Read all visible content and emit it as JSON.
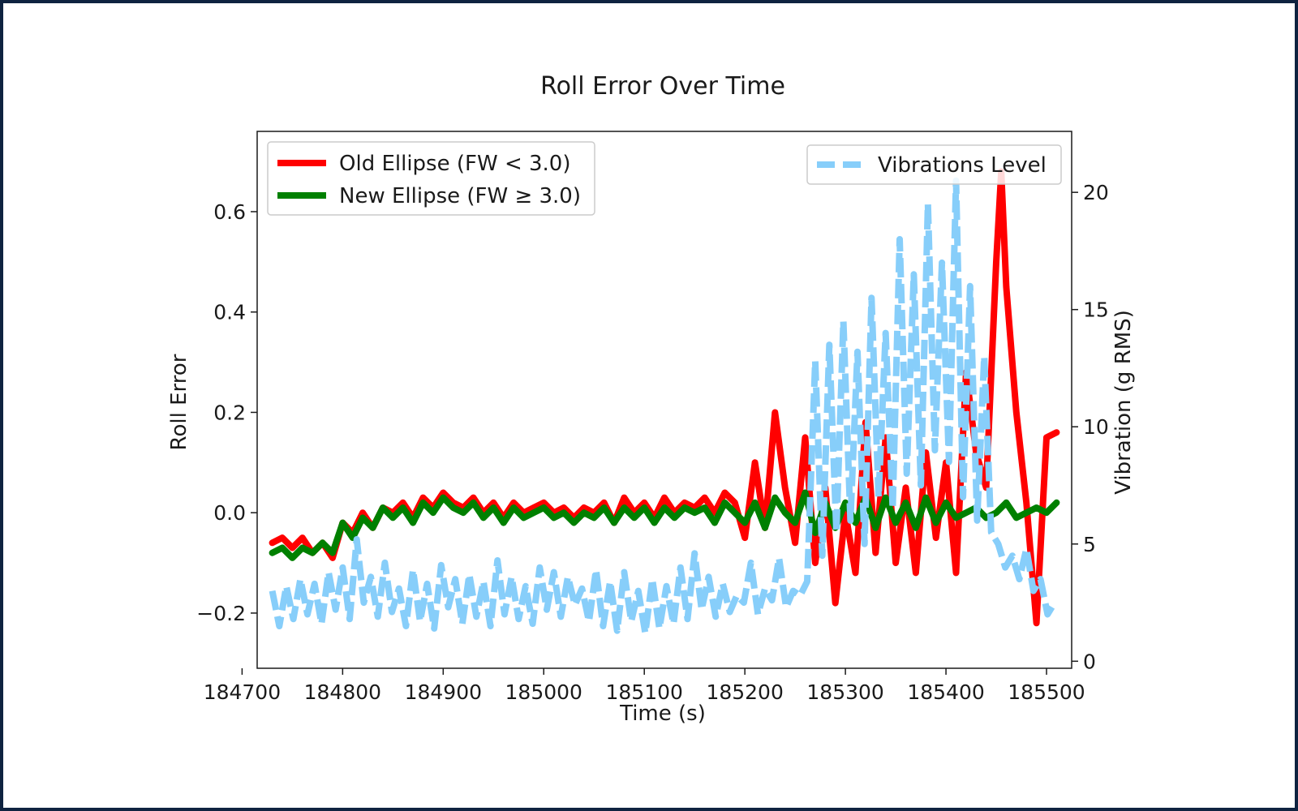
{
  "chart_data": {
    "type": "line",
    "title": "Roll Error Over Time",
    "xlabel": "Time (s)",
    "ylabel": "Roll Error",
    "y2label": "Vibration (g RMS)",
    "xlim": [
      184715,
      185525
    ],
    "ylim": [
      -0.31,
      0.76
    ],
    "y2lim": [
      -0.3,
      22.6
    ],
    "xticks": [
      184700,
      184800,
      184900,
      185000,
      185100,
      185200,
      185300,
      185400,
      185500
    ],
    "xtick_labels": [
      "184700",
      "184800",
      "184900",
      "185000",
      "185100",
      "185200",
      "185300",
      "185400",
      "185500"
    ],
    "yticks": [
      -0.2,
      0.0,
      0.2,
      0.4,
      0.6
    ],
    "ytick_labels": [
      "−0.2",
      "0.0",
      "0.2",
      "0.4",
      "0.6"
    ],
    "y2ticks": [
      0,
      5,
      10,
      15,
      20
    ],
    "y2tick_labels": [
      "0",
      "5",
      "10",
      "15",
      "20"
    ],
    "grid": false,
    "legend_left": "top-left",
    "legend_right": "top-right",
    "series": [
      {
        "name": "Old Ellipse (FW < 3.0)",
        "axis": "left",
        "color": "#ff0000",
        "style": "solid",
        "x": [
          184730,
          184740,
          184750,
          184760,
          184770,
          184780,
          184790,
          184800,
          184810,
          184820,
          184830,
          184840,
          184850,
          184860,
          184870,
          184880,
          184890,
          184900,
          184910,
          184920,
          184930,
          184940,
          184950,
          184960,
          184970,
          184980,
          184990,
          185000,
          185010,
          185020,
          185030,
          185040,
          185050,
          185060,
          185070,
          185080,
          185090,
          185100,
          185110,
          185120,
          185130,
          185140,
          185150,
          185160,
          185170,
          185180,
          185190,
          185200,
          185210,
          185220,
          185230,
          185240,
          185250,
          185260,
          185270,
          185280,
          185290,
          185300,
          185310,
          185320,
          185330,
          185340,
          185350,
          185360,
          185370,
          185380,
          185390,
          185400,
          185410,
          185420,
          185430,
          185440,
          185450,
          185455,
          185460,
          185470,
          185480,
          185490,
          185500,
          185510
        ],
        "y": [
          -0.06,
          -0.05,
          -0.07,
          -0.05,
          -0.08,
          -0.06,
          -0.09,
          -0.02,
          -0.04,
          0.0,
          -0.03,
          0.01,
          0.0,
          0.02,
          -0.01,
          0.03,
          0.01,
          0.04,
          0.02,
          0.01,
          0.03,
          0.0,
          0.02,
          -0.01,
          0.02,
          0.0,
          0.01,
          0.02,
          0.0,
          0.01,
          -0.01,
          0.01,
          0.0,
          0.02,
          -0.02,
          0.03,
          0.0,
          0.02,
          -0.01,
          0.03,
          0.0,
          0.02,
          0.01,
          0.03,
          0.0,
          0.04,
          0.02,
          -0.05,
          0.1,
          -0.03,
          0.2,
          0.05,
          -0.06,
          0.15,
          -0.1,
          0.05,
          -0.18,
          0.0,
          -0.12,
          0.18,
          -0.08,
          0.15,
          -0.1,
          0.05,
          -0.12,
          0.12,
          -0.05,
          0.1,
          -0.12,
          0.28,
          0.12,
          0.05,
          0.5,
          0.68,
          0.45,
          0.2,
          0.02,
          -0.22,
          0.15,
          0.16
        ]
      },
      {
        "name": "New Ellipse (FW ≥ 3.0)",
        "axis": "left",
        "color": "#008000",
        "style": "solid",
        "x": [
          184730,
          184740,
          184750,
          184760,
          184770,
          184780,
          184790,
          184800,
          184810,
          184820,
          184830,
          184840,
          184850,
          184860,
          184870,
          184880,
          184890,
          184900,
          184910,
          184920,
          184930,
          184940,
          184950,
          184960,
          184970,
          184980,
          184990,
          185000,
          185010,
          185020,
          185030,
          185040,
          185050,
          185060,
          185070,
          185080,
          185090,
          185100,
          185110,
          185120,
          185130,
          185140,
          185150,
          185160,
          185170,
          185180,
          185190,
          185200,
          185210,
          185220,
          185230,
          185240,
          185250,
          185260,
          185270,
          185280,
          185290,
          185300,
          185310,
          185320,
          185330,
          185340,
          185350,
          185360,
          185370,
          185380,
          185390,
          185400,
          185410,
          185420,
          185430,
          185440,
          185450,
          185460,
          185470,
          185480,
          185490,
          185500,
          185510
        ],
        "y": [
          -0.08,
          -0.07,
          -0.09,
          -0.07,
          -0.08,
          -0.06,
          -0.08,
          -0.02,
          -0.05,
          -0.01,
          -0.03,
          0.01,
          -0.01,
          0.01,
          -0.02,
          0.02,
          0.0,
          0.03,
          0.01,
          0.0,
          0.02,
          -0.01,
          0.01,
          -0.02,
          0.01,
          -0.01,
          0.0,
          0.01,
          -0.01,
          0.0,
          -0.02,
          0.0,
          -0.01,
          0.01,
          -0.02,
          0.01,
          -0.01,
          0.01,
          -0.02,
          0.01,
          -0.01,
          0.01,
          0.0,
          0.01,
          -0.02,
          0.02,
          0.0,
          -0.02,
          0.02,
          -0.03,
          0.03,
          0.0,
          -0.02,
          0.04,
          -0.04,
          0.02,
          -0.03,
          0.02,
          -0.02,
          0.03,
          -0.03,
          0.03,
          -0.02,
          0.02,
          -0.03,
          0.03,
          -0.02,
          0.02,
          -0.01,
          0.0,
          0.01,
          -0.01,
          0.0,
          0.02,
          -0.01,
          0.0,
          0.01,
          0.0,
          0.02
        ]
      },
      {
        "name": "Vibrations Level",
        "axis": "right",
        "color": "#87cefa",
        "style": "dashed",
        "x": [
          184730,
          184737,
          184744,
          184751,
          184758,
          184765,
          184772,
          184779,
          184786,
          184793,
          184800,
          184807,
          184814,
          184821,
          184828,
          184835,
          184842,
          184849,
          184856,
          184863,
          184870,
          184877,
          184884,
          184891,
          184898,
          184905,
          184912,
          184919,
          184926,
          184933,
          184940,
          184947,
          184954,
          184961,
          184968,
          184975,
          184982,
          184989,
          184996,
          185003,
          185010,
          185017,
          185024,
          185031,
          185038,
          185045,
          185052,
          185059,
          185066,
          185073,
          185080,
          185087,
          185094,
          185101,
          185108,
          185115,
          185122,
          185129,
          185136,
          185143,
          185150,
          185157,
          185164,
          185171,
          185178,
          185185,
          185192,
          185199,
          185206,
          185213,
          185220,
          185227,
          185234,
          185241,
          185248,
          185255,
          185262,
          185270,
          185277,
          185284,
          185291,
          185298,
          185305,
          185312,
          185319,
          185326,
          185333,
          185340,
          185347,
          185354,
          185361,
          185368,
          185375,
          185382,
          185389,
          185396,
          185403,
          185410,
          185417,
          185424,
          185431,
          185438,
          185445,
          185452,
          185459,
          185466,
          185473,
          185480,
          185487,
          185494,
          185501,
          185508
        ],
        "y": [
          3.0,
          1.5,
          3.2,
          1.8,
          3.5,
          2.0,
          3.3,
          1.6,
          3.8,
          2.2,
          4.0,
          1.8,
          5.2,
          2.5,
          3.6,
          1.9,
          4.2,
          2.1,
          3.1,
          1.5,
          3.9,
          1.7,
          3.3,
          1.4,
          4.1,
          2.3,
          3.5,
          1.6,
          3.7,
          1.9,
          3.4,
          1.5,
          4.3,
          2.0,
          3.6,
          1.8,
          3.2,
          1.6,
          4.0,
          2.2,
          3.8,
          1.9,
          3.6,
          2.4,
          3.1,
          1.7,
          3.9,
          1.5,
          3.4,
          1.3,
          3.8,
          1.7,
          3.0,
          1.2,
          3.5,
          1.4,
          3.2,
          1.6,
          4.0,
          1.8,
          4.6,
          2.2,
          3.6,
          1.9,
          3.3,
          2.1,
          2.8,
          2.5,
          4.2,
          2.0,
          3.1,
          2.6,
          4.4,
          2.3,
          3.0,
          2.8,
          3.4,
          12.8,
          4.5,
          13.5,
          5.5,
          14.5,
          6.0,
          13.2,
          5.0,
          15.5,
          7.0,
          14.0,
          6.5,
          18.0,
          8.0,
          16.5,
          7.5,
          19.5,
          9.0,
          17.0,
          8.5,
          20.5,
          7.0,
          16.0,
          6.0,
          13.0,
          5.5,
          5.0,
          4.0,
          4.5,
          3.5,
          4.8,
          3.0,
          3.5,
          2.0,
          2.5
        ]
      }
    ]
  }
}
